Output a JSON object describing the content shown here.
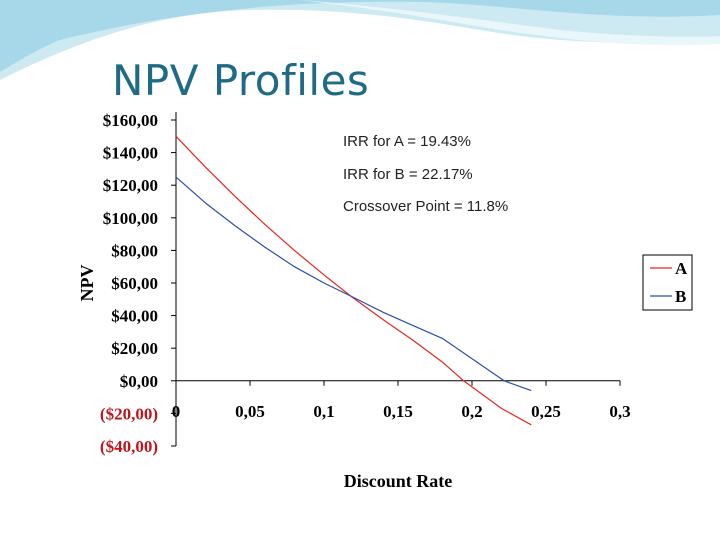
{
  "slide": {
    "title": "NPV Profiles"
  },
  "chart_data": {
    "type": "line",
    "title": "",
    "xlabel": "Discount Rate",
    "ylabel": "NPV",
    "xlim": [
      0,
      0.3
    ],
    "ylim": [
      -40,
      160
    ],
    "x_ticks": [
      "0",
      "0,05",
      "0,1",
      "0,15",
      "0,2",
      "0,25",
      "0,3"
    ],
    "y_ticks": [
      {
        "value": 160,
        "label": "$160,00"
      },
      {
        "value": 140,
        "label": "$140,00"
      },
      {
        "value": 120,
        "label": "$120,00"
      },
      {
        "value": 100,
        "label": "$100,00"
      },
      {
        "value": 80,
        "label": "$80,00"
      },
      {
        "value": 60,
        "label": "$60,00"
      },
      {
        "value": 40,
        "label": "$40,00"
      },
      {
        "value": 20,
        "label": "$20,00"
      },
      {
        "value": 0,
        "label": "$0,00"
      },
      {
        "value": -20,
        "label": "($20,00)"
      },
      {
        "value": -40,
        "label": "($40,00)"
      }
    ],
    "grid": {
      "horizontal": false,
      "vertical": false
    },
    "legend_position": "right",
    "series": [
      {
        "name": "A",
        "color": "#e8261e",
        "x": [
          0,
          0.02,
          0.04,
          0.06,
          0.08,
          0.1,
          0.118,
          0.14,
          0.16,
          0.18,
          0.1943,
          0.22,
          0.24
        ],
        "y": [
          150,
          131,
          113,
          96,
          80,
          65,
          52,
          37.5,
          25,
          11.5,
          0,
          -17,
          -27
        ]
      },
      {
        "name": "B",
        "color": "#2b50a8",
        "x": [
          0,
          0.02,
          0.04,
          0.06,
          0.08,
          0.1,
          0.118,
          0.14,
          0.16,
          0.18,
          0.2217,
          0.24
        ],
        "y": [
          125,
          109,
          95,
          82,
          70,
          60,
          52,
          42,
          34,
          26,
          0,
          -6
        ]
      }
    ],
    "annotations": [
      "IRR for A = 19.43%",
      "IRR for B = 22.17%",
      "Crossover Point = 11.8%"
    ],
    "negative_tick_color": "#c0141c"
  }
}
